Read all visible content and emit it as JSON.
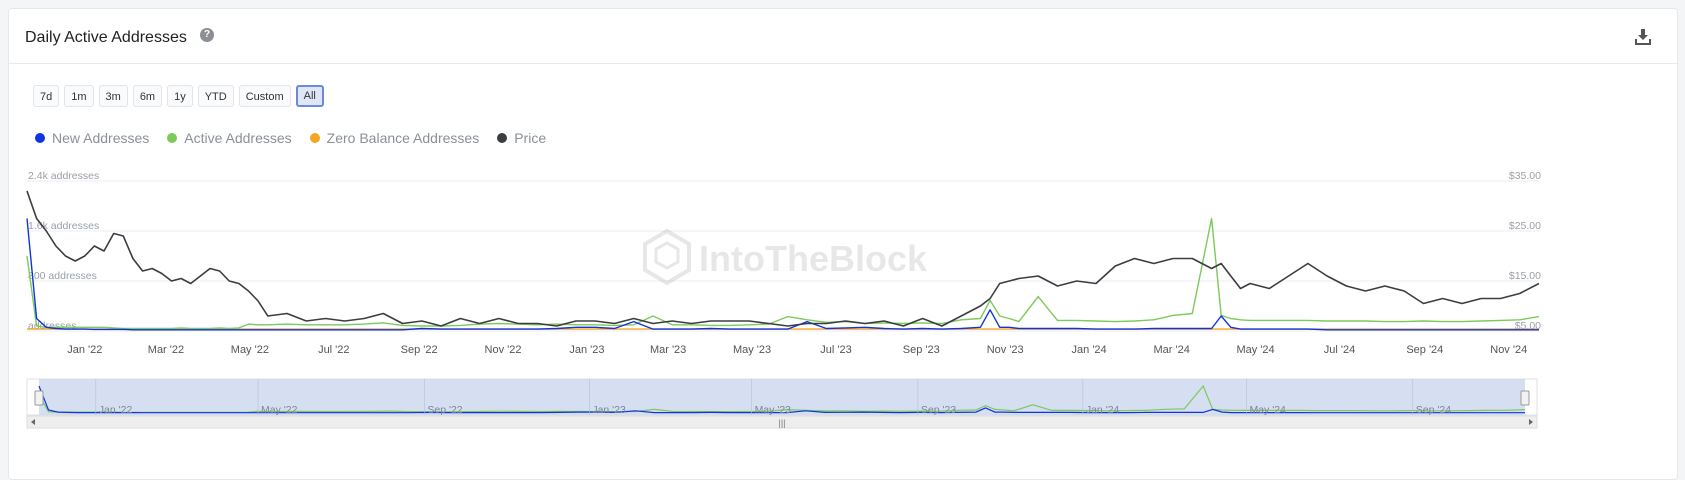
{
  "header": {
    "title": "Daily Active Addresses",
    "help_icon": "question-circle-icon",
    "download_icon": "download-icon"
  },
  "range_buttons": [
    "7d",
    "1m",
    "3m",
    "6m",
    "1y",
    "YTD",
    "Custom",
    "All"
  ],
  "active_range": "All",
  "watermark": "IntoTheBlock",
  "colors": {
    "new": "#1034e0",
    "active": "#7cca5a",
    "zero": "#f5a623",
    "price": "#3a3d42",
    "accent": "#6d89d6"
  },
  "chart_data": {
    "type": "line",
    "x": [
      "2021-11-20",
      "2021-11-27",
      "2021-12-04",
      "2021-12-11",
      "2021-12-18",
      "2021-12-25",
      "2022-01-01",
      "2022-01-08",
      "2022-01-15",
      "2022-01-22",
      "2022-01-29",
      "2022-02-05",
      "2022-02-12",
      "2022-02-19",
      "2022-02-26",
      "2022-03-05",
      "2022-03-12",
      "2022-03-19",
      "2022-03-26",
      "2022-04-02",
      "2022-04-09",
      "2022-04-16",
      "2022-04-23",
      "2022-04-30",
      "2022-05-07",
      "2022-05-14",
      "2022-05-28",
      "2022-06-11",
      "2022-06-25",
      "2022-07-09",
      "2022-07-23",
      "2022-08-06",
      "2022-08-20",
      "2022-09-03",
      "2022-09-17",
      "2022-10-01",
      "2022-10-15",
      "2022-10-29",
      "2022-11-12",
      "2022-11-26",
      "2022-12-10",
      "2022-12-24",
      "2023-01-07",
      "2023-01-21",
      "2023-02-04",
      "2023-02-18",
      "2023-03-04",
      "2023-03-18",
      "2023-04-01",
      "2023-04-15",
      "2023-04-29",
      "2023-05-13",
      "2023-05-27",
      "2023-06-10",
      "2023-06-24",
      "2023-07-08",
      "2023-07-22",
      "2023-08-05",
      "2023-08-19",
      "2023-09-02",
      "2023-09-16",
      "2023-09-30",
      "2023-10-14",
      "2023-10-21",
      "2023-10-28",
      "2023-11-04",
      "2023-11-11",
      "2023-11-25",
      "2023-12-09",
      "2023-12-23",
      "2024-01-06",
      "2024-01-20",
      "2024-02-03",
      "2024-02-17",
      "2024-03-02",
      "2024-03-16",
      "2024-03-30",
      "2024-04-06",
      "2024-04-13",
      "2024-04-20",
      "2024-04-27",
      "2024-05-11",
      "2024-05-25",
      "2024-06-08",
      "2024-06-22",
      "2024-07-06",
      "2024-07-20",
      "2024-08-03",
      "2024-08-17",
      "2024-08-31",
      "2024-09-14",
      "2024-09-28",
      "2024-10-12",
      "2024-10-26",
      "2024-11-09",
      "2024-11-23"
    ],
    "xticks": [
      "Jan '22",
      "Mar '22",
      "May '22",
      "Jul '22",
      "Sep '22",
      "Nov '22",
      "Jan '23",
      "Mar '23",
      "May '23",
      "Jul '23",
      "Sep '23",
      "Nov '23",
      "Jan '24",
      "Mar '24",
      "May '24",
      "Jul '24",
      "Sep '24",
      "Nov '24"
    ],
    "y_left": {
      "ticks": [
        "addresses",
        "800 addresses",
        "1.6k addresses",
        "2.4k addresses"
      ],
      "lim": [
        0,
        2400
      ]
    },
    "y_right": {
      "ticks": [
        "$5.00",
        "$15.00",
        "$25.00",
        "$35.00"
      ],
      "lim": [
        5,
        35
      ]
    },
    "series": [
      {
        "name": "New Addresses",
        "axis": "left",
        "values": [
          1800,
          200,
          60,
          40,
          30,
          30,
          30,
          25,
          25,
          25,
          25,
          20,
          20,
          20,
          20,
          20,
          20,
          20,
          20,
          20,
          20,
          20,
          20,
          20,
          20,
          20,
          20,
          20,
          20,
          20,
          20,
          20,
          20,
          40,
          30,
          30,
          30,
          30,
          30,
          30,
          40,
          60,
          60,
          40,
          150,
          30,
          30,
          30,
          40,
          30,
          30,
          30,
          30,
          150,
          40,
          50,
          60,
          40,
          30,
          40,
          30,
          40,
          60,
          340,
          60,
          60,
          40,
          40,
          40,
          40,
          30,
          30,
          30,
          40,
          40,
          40,
          40,
          240,
          60,
          30,
          30,
          30,
          30,
          30,
          20,
          20,
          20,
          20,
          20,
          20,
          20,
          20,
          20,
          20,
          20,
          20
        ]
      },
      {
        "name": "Active Addresses",
        "axis": "left",
        "values": [
          1200,
          80,
          60,
          60,
          60,
          60,
          60,
          60,
          60,
          50,
          40,
          40,
          40,
          40,
          40,
          40,
          50,
          40,
          40,
          40,
          50,
          40,
          50,
          110,
          100,
          100,
          110,
          100,
          100,
          100,
          110,
          130,
          90,
          80,
          80,
          90,
          110,
          120,
          110,
          100,
          110,
          100,
          100,
          90,
          100,
          240,
          100,
          100,
          90,
          90,
          100,
          110,
          230,
          180,
          140,
          150,
          120,
          130,
          120,
          130,
          120,
          180,
          200,
          490,
          240,
          200,
          150,
          550,
          170,
          170,
          160,
          150,
          160,
          180,
          250,
          280,
          1800,
          250,
          200,
          180,
          170,
          170,
          170,
          170,
          160,
          160,
          160,
          150,
          150,
          160,
          150,
          150,
          160,
          170,
          180,
          230
        ]
      },
      {
        "name": "Zero Balance Addresses",
        "axis": "left",
        "values": [
          30,
          30,
          30,
          30,
          30,
          30,
          30,
          30,
          30,
          30,
          30,
          30,
          30,
          30,
          30,
          30,
          30,
          30,
          30,
          30,
          30,
          30,
          30,
          30,
          30,
          30,
          30,
          30,
          30,
          30,
          30,
          30,
          30,
          30,
          30,
          30,
          30,
          30,
          30,
          30,
          30,
          30,
          30,
          30,
          30,
          30,
          30,
          30,
          30,
          30,
          30,
          30,
          30,
          30,
          30,
          30,
          30,
          30,
          30,
          30,
          30,
          30,
          30,
          30,
          30,
          30,
          30,
          30,
          30,
          30,
          30,
          30,
          30,
          30,
          30,
          30,
          30,
          30,
          30,
          30,
          30,
          30,
          30,
          30,
          30,
          30,
          30,
          30,
          30,
          30,
          30,
          30,
          30,
          30,
          30,
          30
        ]
      },
      {
        "name": "Price",
        "axis": "right",
        "values": [
          33,
          27.5,
          25,
          22,
          20,
          19,
          20,
          22,
          21,
          24.5,
          24,
          19.5,
          17,
          17.5,
          16.5,
          15,
          15.5,
          14.5,
          16,
          17.5,
          17,
          15,
          14.5,
          13,
          11,
          8,
          8.5,
          7,
          7.5,
          7,
          7.5,
          8.5,
          6.5,
          7,
          6,
          7.5,
          6.5,
          7.5,
          6.5,
          6.5,
          6,
          7,
          7,
          6.5,
          7.5,
          6.5,
          7,
          6.5,
          7,
          7,
          7,
          6.5,
          6,
          6.5,
          6.5,
          7,
          6.5,
          7,
          6,
          7.5,
          6,
          8,
          10,
          11.5,
          14.5,
          15,
          15.5,
          16,
          14,
          15,
          14.5,
          18,
          19.5,
          18.5,
          19.5,
          19.5,
          17.5,
          18.5,
          16,
          13.5,
          14.5,
          13.5,
          16,
          18.5,
          16,
          14,
          13,
          14,
          13,
          10.5,
          11.5,
          10.5,
          11.5,
          11.5,
          12.5,
          14.5
        ]
      }
    ],
    "legend": "top-left",
    "grid": true
  }
}
